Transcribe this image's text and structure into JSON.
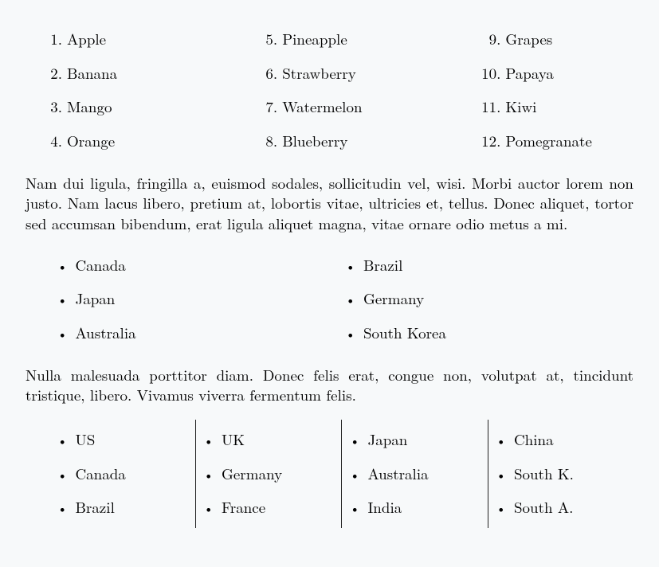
{
  "fruits": {
    "columns": [
      [
        {
          "n": "1.",
          "label": "Apple"
        },
        {
          "n": "2.",
          "label": "Banana"
        },
        {
          "n": "3.",
          "label": "Mango"
        },
        {
          "n": "4.",
          "label": "Orange"
        }
      ],
      [
        {
          "n": "5.",
          "label": "Pineapple"
        },
        {
          "n": "6.",
          "label": "Strawberry"
        },
        {
          "n": "7.",
          "label": "Watermelon"
        },
        {
          "n": "8.",
          "label": "Blueberry"
        }
      ],
      [
        {
          "n": "9.",
          "label": "Grapes"
        },
        {
          "n": "10.",
          "label": "Papaya"
        },
        {
          "n": "11.",
          "label": "Kiwi"
        },
        {
          "n": "12.",
          "label": "Pomegranate"
        }
      ]
    ]
  },
  "paragraph1": "Nam dui ligula, fringilla a, euismod sodales, sollicitudin vel, wisi. Morbi auctor lorem non justo. Nam lacus libero, pretium at, lobortis vitae, ultricies et, tellus. Donec aliquet, tortor sed accumsan bibendum, erat ligula aliquet magna, vitae ornare odio metus a mi.",
  "countries2": {
    "columns": [
      [
        "Canada",
        "Japan",
        "Australia"
      ],
      [
        "Brazil",
        "Germany",
        "South Korea"
      ]
    ]
  },
  "paragraph2": "Nulla malesuada porttitor diam.  Donec felis erat, congue non, volutpat at, tincidunt tristique, libero. Vivamus viverra fermentum felis.",
  "countries4": {
    "columns": [
      [
        "US",
        "Canada",
        "Brazil"
      ],
      [
        "UK",
        "Germany",
        "France"
      ],
      [
        "Japan",
        "Australia",
        "India"
      ],
      [
        "China",
        "South K.",
        "South A."
      ]
    ]
  },
  "style": {
    "background": "#f7f9fa",
    "text_color": "#000000",
    "font_family": "Latin Modern Roman / Computer Modern (serif)",
    "font_size_pt": 14,
    "bullet_glyph": "•",
    "rule_color": "#222222"
  }
}
